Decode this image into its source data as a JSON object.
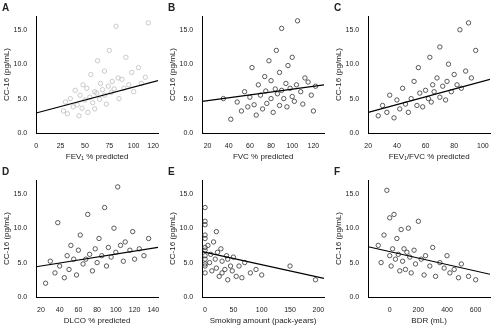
{
  "chart_data": [
    {
      "type": "scatter",
      "title": "A",
      "x_label": "FEV₁ % predicted",
      "y_label": "CC-16 (pg/mL)",
      "grid": false,
      "xlim": [
        0,
        125
      ],
      "xticks": [
        0,
        25,
        50,
        75,
        100,
        120
      ],
      "ylim": [
        0,
        17
      ],
      "yticks": [
        {
          "value": 0,
          "label": "0.0"
        },
        {
          "value": 5,
          "label": "5.0"
        },
        {
          "value": 10,
          "label": "10.0"
        },
        {
          "value": 15,
          "label": "15.0"
        }
      ],
      "series": [
        {
          "type": "scatter",
          "marker": "circle",
          "color": "#bdbdbd",
          "x": [
            28,
            30,
            32,
            35,
            38,
            40,
            42,
            44,
            45,
            47,
            48,
            50,
            52,
            53,
            55,
            56,
            58,
            60,
            60,
            62,
            63,
            65,
            66,
            68,
            70,
            70,
            72,
            74,
            75,
            77,
            78,
            80,
            82,
            84,
            85,
            88,
            90,
            92,
            95,
            98,
            100,
            105,
            108,
            112,
            115
          ],
          "values": [
            3.2,
            4.5,
            2.8,
            5.0,
            3.8,
            6.2,
            4.1,
            2.5,
            5.5,
            3.6,
            7.0,
            4.8,
            6.5,
            3.0,
            5.2,
            8.5,
            4.4,
            6.0,
            3.5,
            5.8,
            10.5,
            4.9,
            7.2,
            6.3,
            5.5,
            9.0,
            4.2,
            6.8,
            12.0,
            5.9,
            7.5,
            6.4,
            15.5,
            8.0,
            5.0,
            7.8,
            6.5,
            11.0,
            7.0,
            8.8,
            6.0,
            9.5,
            7.2,
            8.1,
            16.0
          ]
        },
        {
          "type": "line",
          "line_style": "solid",
          "color": "#000000",
          "x": [
            0,
            125
          ],
          "values": [
            2.9,
            7.6
          ]
        }
      ]
    },
    {
      "type": "scatter",
      "title": "B",
      "x_label": "FVC % predicted",
      "y_label": "CC-16 (pg/mL)",
      "grid": false,
      "xlim": [
        15,
        130
      ],
      "xticks": [
        20,
        40,
        60,
        80,
        100,
        120
      ],
      "ylim": [
        0,
        17
      ],
      "yticks": [
        {
          "value": 0,
          "label": "0.0"
        },
        {
          "value": 5,
          "label": "5.0"
        },
        {
          "value": 10,
          "label": "10.0"
        },
        {
          "value": 15,
          "label": "15.0"
        }
      ],
      "series": [
        {
          "type": "scatter",
          "marker": "circle",
          "color": "#333333",
          "x": [
            35,
            42,
            48,
            52,
            55,
            58,
            60,
            62,
            64,
            66,
            68,
            70,
            72,
            74,
            75,
            76,
            78,
            80,
            80,
            82,
            84,
            85,
            86,
            88,
            88,
            90,
            90,
            92,
            94,
            95,
            96,
            98,
            100,
            100,
            102,
            104,
            105,
            108,
            110,
            112,
            115,
            118,
            120,
            122
          ],
          "values": [
            5.0,
            2.0,
            4.5,
            3.2,
            6.0,
            3.8,
            5.2,
            9.5,
            4.1,
            2.6,
            7.0,
            5.5,
            3.5,
            8.2,
            6.1,
            4.3,
            10.5,
            5.0,
            7.6,
            3.0,
            6.4,
            12.0,
            5.7,
            4.0,
            8.8,
            6.2,
            15.2,
            5.0,
            7.2,
            3.8,
            9.8,
            6.5,
            5.3,
            11.0,
            4.6,
            7.0,
            16.3,
            6.0,
            4.2,
            8.0,
            7.4,
            5.5,
            3.2,
            6.8
          ]
        },
        {
          "type": "line",
          "line_style": "solid",
          "color": "#000000",
          "x": [
            15,
            130
          ],
          "values": [
            4.6,
            7.0
          ]
        }
      ]
    },
    {
      "type": "scatter",
      "title": "C",
      "x_label": "FEV₁/FVC % predicted",
      "y_label": "CC-16 (pg/mL)",
      "grid": false,
      "xlim": [
        20,
        105
      ],
      "xticks": [
        20,
        40,
        60,
        80,
        100
      ],
      "ylim": [
        0,
        17
      ],
      "yticks": [
        {
          "value": 0,
          "label": "0.0"
        },
        {
          "value": 5,
          "label": "5.0"
        },
        {
          "value": 10,
          "label": "10.0"
        },
        {
          "value": 15,
          "label": "15.0"
        }
      ],
      "series": [
        {
          "type": "scatter",
          "marker": "circle",
          "color": "#333333",
          "x": [
            27,
            30,
            33,
            35,
            38,
            40,
            42,
            44,
            46,
            48,
            50,
            52,
            54,
            55,
            56,
            58,
            60,
            62,
            63,
            64,
            65,
            66,
            68,
            70,
            70,
            72,
            74,
            75,
            76,
            78,
            80,
            82,
            84,
            85,
            88,
            90,
            92,
            95
          ],
          "values": [
            2.5,
            4.0,
            3.0,
            5.5,
            2.2,
            4.8,
            3.5,
            6.5,
            4.2,
            3.0,
            5.0,
            7.5,
            4.0,
            9.5,
            5.8,
            3.8,
            6.2,
            5.0,
            11.0,
            4.5,
            7.0,
            6.0,
            8.0,
            5.2,
            12.5,
            6.8,
            4.8,
            7.5,
            10.0,
            6.0,
            8.5,
            7.0,
            15.0,
            6.5,
            9.0,
            16.0,
            8.0,
            12.0
          ]
        },
        {
          "type": "line",
          "line_style": "solid",
          "color": "#000000",
          "x": [
            20,
            105
          ],
          "values": [
            3.0,
            7.8
          ]
        }
      ]
    },
    {
      "type": "scatter",
      "title": "D",
      "x_label": "DLCO % predicted",
      "y_label": "CC-16 (pg/mL)",
      "grid": false,
      "xlim": [
        15,
        145
      ],
      "xticks": [
        20,
        40,
        60,
        80,
        100,
        120,
        140
      ],
      "ylim": [
        0,
        17
      ],
      "yticks": [
        {
          "value": 0,
          "label": "0.0"
        },
        {
          "value": 5,
          "label": "5.0"
        },
        {
          "value": 10,
          "label": "10.0"
        },
        {
          "value": 15,
          "label": "15.0"
        }
      ],
      "series": [
        {
          "type": "scatter",
          "marker": "circle",
          "color": "#333333",
          "x": [
            25,
            30,
            35,
            38,
            40,
            45,
            48,
            50,
            52,
            55,
            58,
            60,
            62,
            65,
            68,
            70,
            72,
            75,
            78,
            80,
            82,
            85,
            88,
            90,
            92,
            95,
            98,
            100,
            102,
            105,
            108,
            110,
            115,
            118,
            120,
            125,
            130,
            135
          ],
          "values": [
            2.0,
            5.2,
            3.5,
            10.8,
            4.5,
            2.8,
            6.0,
            4.0,
            7.5,
            5.5,
            3.2,
            6.8,
            9.0,
            4.8,
            5.5,
            12.0,
            6.2,
            3.8,
            7.0,
            5.0,
            8.5,
            6.0,
            13.0,
            4.5,
            7.2,
            5.8,
            10.0,
            6.5,
            16.0,
            7.5,
            5.2,
            8.0,
            6.8,
            9.5,
            5.5,
            7.0,
            6.0,
            8.5
          ]
        },
        {
          "type": "line",
          "line_style": "solid",
          "color": "#000000",
          "x": [
            15,
            145
          ],
          "values": [
            4.4,
            7.2
          ]
        }
      ]
    },
    {
      "type": "scatter",
      "title": "E",
      "x_label": "Smoking amount (pack-years)",
      "y_label": "CC-16 (pg/mL)",
      "grid": false,
      "xlim": [
        -5,
        210
      ],
      "xticks": [
        0,
        50,
        100,
        150,
        200
      ],
      "ylim": [
        0,
        17
      ],
      "yticks": [
        {
          "value": 0,
          "label": "0.0"
        },
        {
          "value": 5,
          "label": "5.0"
        },
        {
          "value": 10,
          "label": "10.0"
        },
        {
          "value": 15,
          "label": "15.0"
        }
      ],
      "series": [
        {
          "type": "scatter",
          "marker": "circle",
          "color": "#333333",
          "x": [
            0,
            0,
            0,
            0,
            0,
            0,
            0,
            0,
            0,
            0,
            0,
            0,
            5,
            8,
            10,
            12,
            15,
            18,
            20,
            20,
            22,
            25,
            28,
            30,
            30,
            35,
            38,
            40,
            40,
            45,
            48,
            50,
            55,
            60,
            65,
            70,
            80,
            90,
            100,
            150,
            195
          ],
          "values": [
            6.0,
            8.5,
            4.5,
            10.5,
            7.2,
            13.0,
            3.5,
            5.5,
            9.0,
            6.8,
            11.0,
            4.8,
            7.5,
            5.0,
            6.2,
            3.8,
            8.0,
            5.5,
            4.2,
            9.5,
            6.5,
            3.0,
            7.0,
            5.2,
            3.5,
            4.0,
            6.0,
            2.5,
            5.5,
            4.5,
            3.8,
            5.8,
            3.0,
            4.5,
            2.8,
            5.0,
            3.5,
            4.0,
            3.2,
            4.5,
            2.5
          ]
        },
        {
          "type": "line",
          "line_style": "solid",
          "color": "#000000",
          "x": [
            -5,
            210
          ],
          "values": [
            6.6,
            2.7
          ]
        }
      ]
    },
    {
      "type": "scatter",
      "title": "F",
      "x_label": "BDR (mL)",
      "y_label": "CC-16 (pg/mL)",
      "grid": false,
      "xlim": [
        -150,
        700
      ],
      "xticks": [
        0,
        200,
        400,
        600
      ],
      "ylim": [
        0,
        17
      ],
      "yticks": [
        {
          "value": 0,
          "label": "0.0"
        },
        {
          "value": 5,
          "label": "5.0"
        },
        {
          "value": 10,
          "label": "10.0"
        },
        {
          "value": 15,
          "label": "15.0"
        }
      ],
      "series": [
        {
          "type": "scatter",
          "marker": "circle",
          "color": "#333333",
          "x": [
            -80,
            -60,
            -40,
            -20,
            0,
            0,
            10,
            20,
            30,
            40,
            50,
            60,
            70,
            80,
            90,
            100,
            110,
            120,
            130,
            140,
            150,
            170,
            180,
            200,
            220,
            240,
            250,
            280,
            300,
            320,
            350,
            380,
            400,
            420,
            450,
            480,
            500,
            550,
            600
          ],
          "values": [
            7.5,
            5.0,
            9.0,
            15.5,
            6.0,
            11.5,
            4.5,
            7.0,
            12.0,
            5.5,
            8.5,
            6.2,
            3.8,
            9.8,
            5.2,
            7.0,
            4.0,
            6.5,
            10.0,
            5.8,
            3.5,
            6.8,
            4.8,
            11.0,
            5.5,
            3.2,
            6.0,
            4.5,
            7.2,
            3.0,
            5.0,
            4.2,
            6.0,
            3.5,
            4.0,
            2.8,
            4.8,
            3.0,
            2.5
          ]
        },
        {
          "type": "line",
          "line_style": "solid",
          "color": "#000000",
          "x": [
            -150,
            700
          ],
          "values": [
            7.3,
            3.3
          ]
        }
      ]
    }
  ]
}
